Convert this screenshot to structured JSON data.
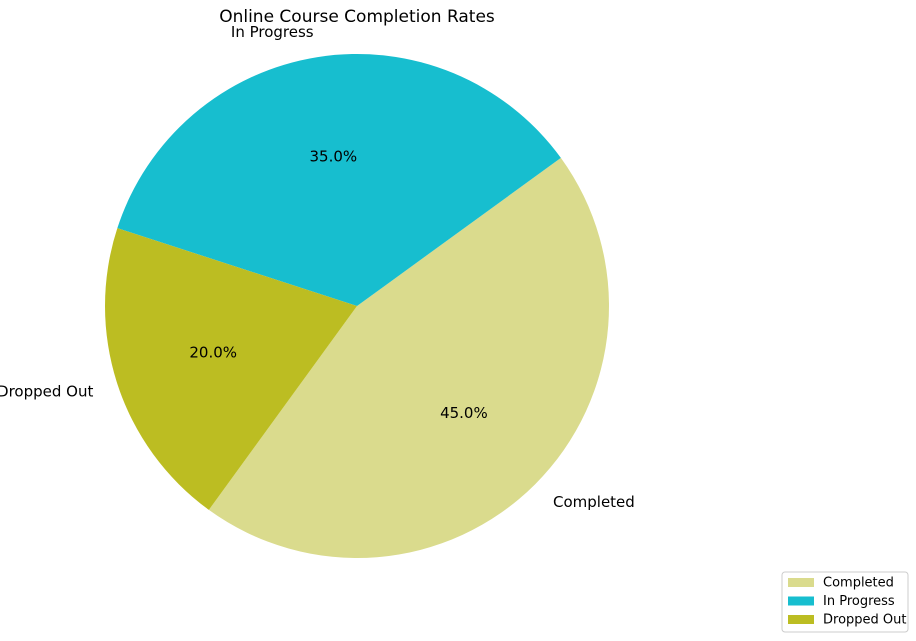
{
  "chart_data": {
    "type": "pie",
    "title": "Online Course Completion Rates",
    "slices": [
      {
        "label": "Completed",
        "value": 45.0,
        "pct_label": "45.0%",
        "color": "#dadb8d"
      },
      {
        "label": "In Progress",
        "value": 35.0,
        "pct_label": "35.0%",
        "color": "#17becf"
      },
      {
        "label": "Dropped Out",
        "value": 20.0,
        "pct_label": "20.0%",
        "color": "#bcbd22"
      }
    ],
    "legend": {
      "placement": "bottom-right",
      "entries": [
        "Completed",
        "In Progress",
        "Dropped Out"
      ]
    }
  }
}
